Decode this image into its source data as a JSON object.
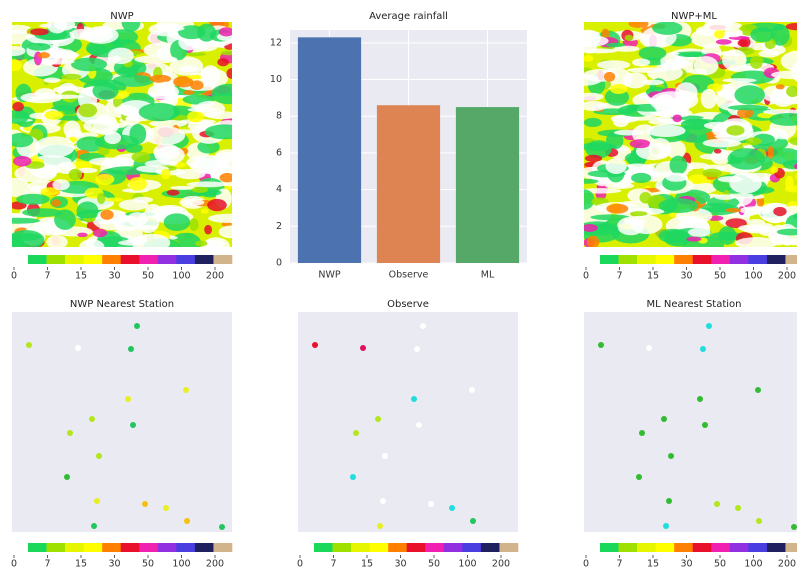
{
  "colorbar": {
    "colors": [
      "#19d85a",
      "#9fe000",
      "#e6f500",
      "#ffff00",
      "#ff8000",
      "#e8102a",
      "#f020b0",
      "#9030e0",
      "#4a3ee0",
      "#202060",
      "#d2b48c"
    ],
    "ticks": [
      0,
      7,
      15,
      30,
      50,
      100,
      200
    ]
  },
  "chart_data": [
    {
      "type": "map",
      "title": "NWP"
    },
    {
      "type": "bar",
      "title": "Average rainfall",
      "categories": [
        "NWP",
        "Observe",
        "ML"
      ],
      "values": [
        12.3,
        8.6,
        8.5
      ],
      "colors": [
        "#4c72b0",
        "#dd8452",
        "#55a868"
      ],
      "ylim": [
        0,
        12.7
      ],
      "yticks": [
        0,
        2,
        4,
        6,
        8,
        10,
        12
      ],
      "grid": true
    },
    {
      "type": "map",
      "title": "NWP+ML"
    },
    {
      "type": "scatter",
      "title": "NWP Nearest Station",
      "xlim": [
        0,
        220
      ],
      "ylim": [
        220,
        0
      ],
      "x": [
        17,
        66,
        125,
        119,
        174,
        116,
        80,
        121,
        58,
        87,
        55,
        85,
        133,
        154,
        175,
        82,
        210
      ],
      "y": [
        33,
        36,
        14,
        37,
        78,
        87,
        107,
        113,
        121,
        144,
        165,
        189,
        192,
        196,
        209,
        214,
        215
      ],
      "point_colors": [
        "#b5e61d",
        "#ffffff",
        "#22c55e",
        "#22c55e",
        "#e6f020",
        "#e6f020",
        "#b5e61d",
        "#22c55e",
        "#b5e61d",
        "#b5e61d",
        "#33bb33",
        "#e6f020",
        "#f5c010",
        "#e6f020",
        "#f5c010",
        "#22c55e",
        "#22c55e"
      ]
    },
    {
      "type": "scatter",
      "title": "Observe",
      "xlim": [
        0,
        220
      ],
      "ylim": [
        220,
        0
      ],
      "x": [
        17,
        65,
        125,
        119,
        174,
        116,
        80,
        121,
        58,
        87,
        55,
        85,
        133,
        154,
        175,
        82
      ],
      "y": [
        33,
        36,
        14,
        37,
        78,
        87,
        107,
        113,
        121,
        144,
        165,
        189,
        192,
        196,
        209,
        214
      ],
      "point_colors": [
        "#e8102a",
        "#e0105a",
        "#ffffff",
        "#ffffff",
        "#ffffff",
        "#22dddd",
        "#b5e61d",
        "#ffffff",
        "#b5e61d",
        "#ffffff",
        "#22dddd",
        "#ffffff",
        "#ffffff",
        "#22dddd",
        "#22c55e",
        "#e6f020"
      ]
    },
    {
      "type": "scatter",
      "title": "ML Nearest Station",
      "xlim": [
        0,
        220
      ],
      "ylim": [
        220,
        0
      ],
      "x": [
        17,
        65,
        125,
        119,
        174,
        116,
        80,
        121,
        58,
        87,
        55,
        85,
        133,
        154,
        175,
        82,
        210
      ],
      "y": [
        33,
        36,
        14,
        37,
        78,
        87,
        107,
        113,
        121,
        144,
        165,
        189,
        192,
        196,
        209,
        214,
        215
      ],
      "point_colors": [
        "#33bb33",
        "#ffffff",
        "#22dddd",
        "#22dddd",
        "#33bb33",
        "#33bb33",
        "#33bb33",
        "#33bb33",
        "#33bb33",
        "#33bb33",
        "#33bb33",
        "#33bb33",
        "#b5e61d",
        "#b5e61d",
        "#b5e61d",
        "#22dddd",
        "#33bb33"
      ]
    }
  ]
}
